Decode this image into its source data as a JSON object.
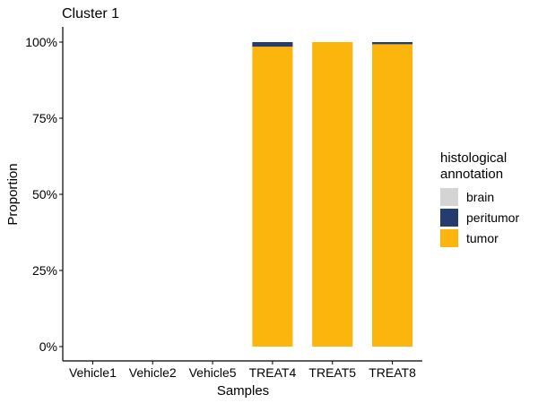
{
  "chart_data": {
    "type": "bar",
    "stacked": true,
    "title": "Cluster 1",
    "xlabel": "Samples",
    "ylabel": "Proportion",
    "ylim": [
      0,
      1
    ],
    "yticks": [
      0,
      0.25,
      0.5,
      0.75,
      1.0
    ],
    "ytick_labels": [
      "0%",
      "25%",
      "50%",
      "75%",
      "100%"
    ],
    "categories": [
      "Vehicle1",
      "Vehicle2",
      "Vehicle5",
      "TREAT4",
      "TREAT5",
      "TREAT8"
    ],
    "series": [
      {
        "name": "tumor",
        "color": "#FBB50C",
        "values": [
          0,
          0,
          0,
          0.985,
          1.0,
          0.993
        ]
      },
      {
        "name": "peritumor",
        "color": "#243D6E",
        "values": [
          0,
          0,
          0,
          0.015,
          0.0,
          0.007
        ]
      },
      {
        "name": "brain",
        "color": "#D4D4D4",
        "values": [
          0,
          0,
          0,
          0,
          0,
          0
        ]
      }
    ],
    "legend": {
      "title": "histological\nannotation",
      "position": "right",
      "order": [
        "brain",
        "peritumor",
        "tumor"
      ]
    },
    "grid": false
  }
}
